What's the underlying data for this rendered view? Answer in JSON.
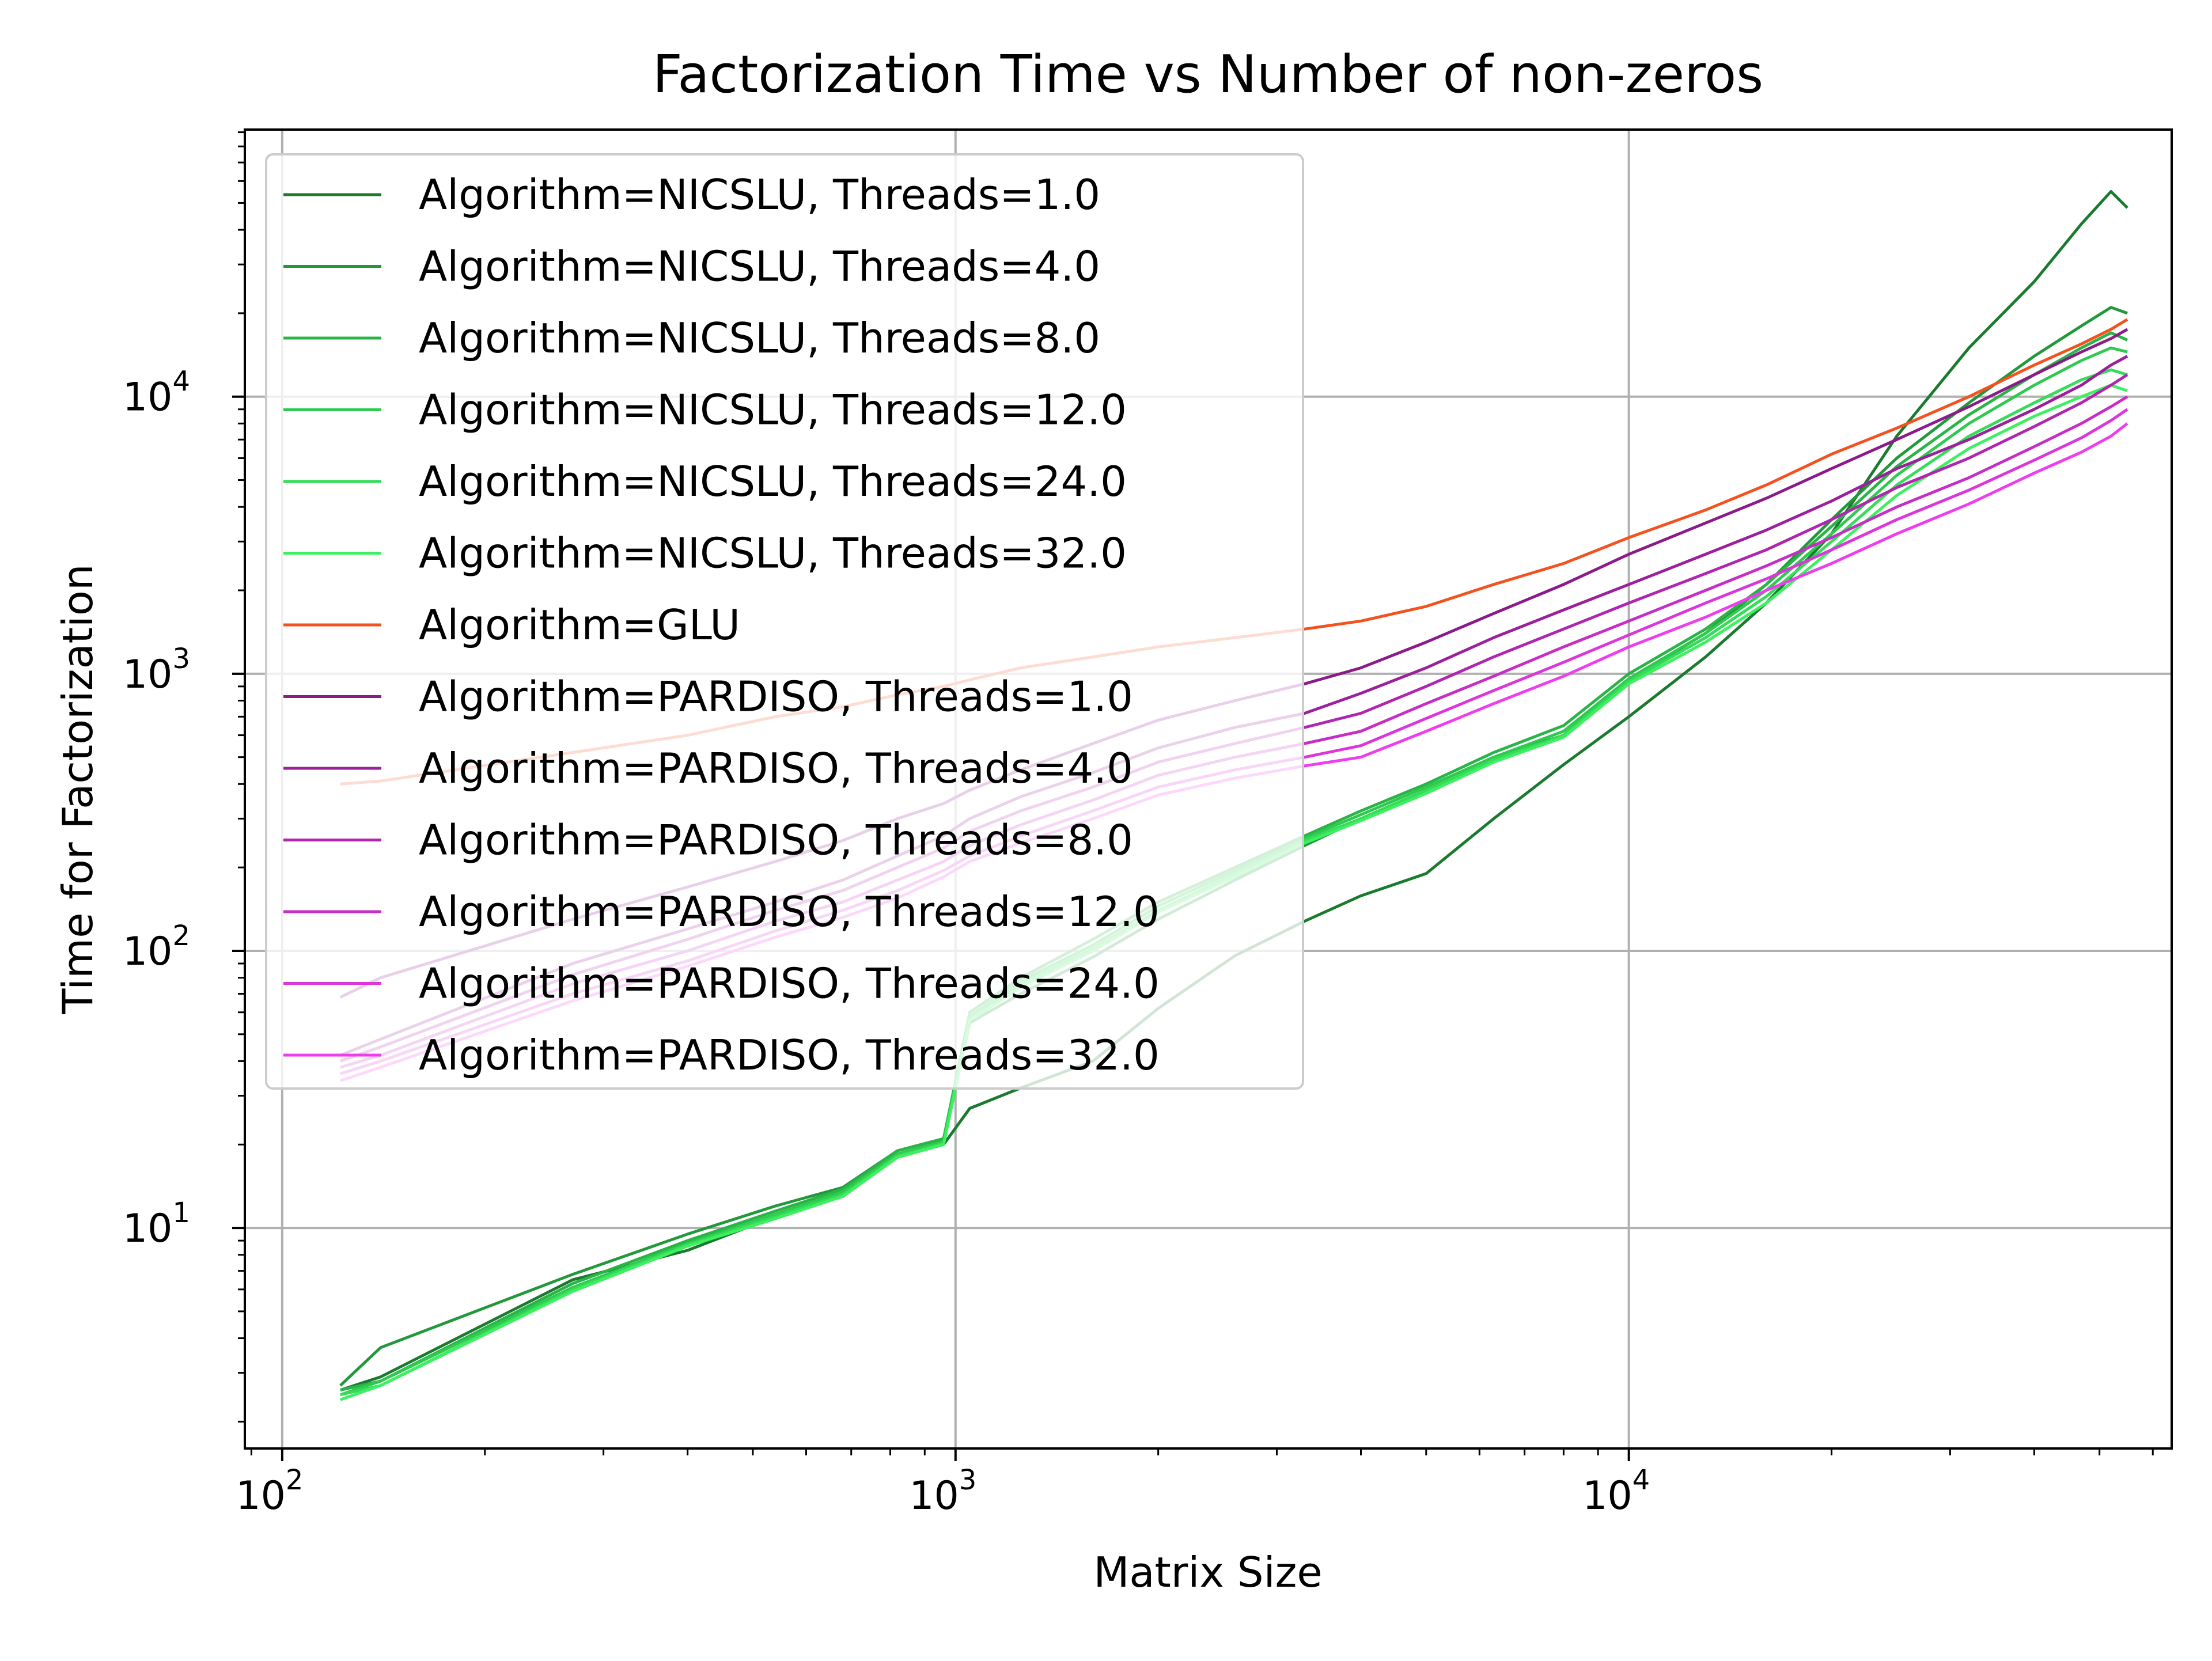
{
  "chart_data": {
    "type": "line",
    "title": "Factorization Time vs Number of non-zeros",
    "xlabel": "Matrix Size",
    "ylabel": "Time for Factorization",
    "x_scale": "log",
    "y_scale": "log",
    "xlim": [
      88,
      64000
    ],
    "ylim": [
      1.6,
      92000
    ],
    "grid": true,
    "legend_position": "top-left",
    "x_ticks": [
      {
        "base": "10",
        "exp": "2",
        "value": 100
      },
      {
        "base": "10",
        "exp": "3",
        "value": 1000
      },
      {
        "base": "10",
        "exp": "4",
        "value": 10000
      }
    ],
    "y_ticks": [
      {
        "base": "10",
        "exp": "1",
        "value": 10
      },
      {
        "base": "10",
        "exp": "2",
        "value": 100
      },
      {
        "base": "10",
        "exp": "3",
        "value": 1000
      },
      {
        "base": "10",
        "exp": "4",
        "value": 10000
      }
    ],
    "series": [
      {
        "name": "Algorithm=NICSLU, Threads=1.0",
        "color": "#1a7a2e",
        "x": [
          122,
          140,
          270,
          400,
          540,
          680,
          820,
          960,
          1050,
          1250,
          1600,
          2000,
          2600,
          3300,
          4000,
          5000,
          6300,
          8000,
          10000,
          13000,
          16000,
          20000,
          25000,
          32000,
          40000,
          47000,
          52000,
          55000
        ],
        "y": [
          2.6,
          2.9,
          6.5,
          8.3,
          11,
          13,
          18,
          20,
          27,
          32,
          40,
          62,
          96,
          128,
          158,
          190,
          300,
          470,
          700,
          1150,
          1800,
          3200,
          7200,
          15000,
          26000,
          42000,
          55000,
          48000
        ]
      },
      {
        "name": "Algorithm=NICSLU, Threads=4.0",
        "color": "#21993a",
        "x": [
          122,
          140,
          270,
          400,
          540,
          680,
          820,
          960,
          1050,
          1250,
          1600,
          2000,
          2600,
          3300,
          4000,
          5000,
          6300,
          8000,
          10000,
          13000,
          16000,
          20000,
          25000,
          32000,
          40000,
          47000,
          52000,
          55000
        ],
        "y": [
          2.7,
          3.7,
          6.8,
          9.5,
          12,
          14,
          19,
          21,
          55,
          70,
          95,
          130,
          180,
          240,
          300,
          380,
          500,
          600,
          950,
          1400,
          2100,
          3600,
          6000,
          9500,
          14000,
          18000,
          21000,
          20000
        ]
      },
      {
        "name": "Algorithm=NICSLU, Threads=8.0",
        "color": "#28b545",
        "x": [
          122,
          140,
          270,
          400,
          540,
          680,
          820,
          960,
          1050,
          1250,
          1600,
          2000,
          2600,
          3300,
          4000,
          5000,
          6300,
          8000,
          10000,
          13000,
          16000,
          20000,
          25000,
          32000,
          40000,
          47000,
          52000,
          55000
        ],
        "y": [
          2.6,
          2.8,
          6.3,
          9.0,
          11.5,
          13.8,
          19,
          21,
          60,
          80,
          110,
          150,
          200,
          260,
          320,
          400,
          520,
          650,
          1000,
          1450,
          2100,
          3400,
          5600,
          8600,
          12000,
          15000,
          17000,
          16000
        ]
      },
      {
        "name": "Algorithm=NICSLU, Threads=12.0",
        "color": "#2ec94f",
        "x": [
          122,
          140,
          270,
          400,
          540,
          680,
          820,
          960,
          1050,
          1250,
          1600,
          2000,
          2600,
          3300,
          4000,
          5000,
          6300,
          8000,
          10000,
          13000,
          16000,
          20000,
          25000,
          32000,
          40000,
          47000,
          52000,
          55000
        ],
        "y": [
          2.5,
          2.8,
          6.1,
          8.8,
          11.2,
          13.5,
          18.5,
          20.5,
          58,
          78,
          105,
          145,
          195,
          255,
          310,
          390,
          500,
          620,
          960,
          1400,
          2000,
          3200,
          5200,
          8000,
          11000,
          13500,
          15000,
          14500
        ]
      },
      {
        "name": "Algorithm=NICSLU, Threads=24.0",
        "color": "#34dc58",
        "x": [
          122,
          140,
          270,
          400,
          540,
          680,
          820,
          960,
          1050,
          1250,
          1600,
          2000,
          2600,
          3300,
          4000,
          5000,
          6300,
          8000,
          10000,
          13000,
          16000,
          20000,
          25000,
          32000,
          40000,
          47000,
          52000,
          55000
        ],
        "y": [
          2.5,
          2.7,
          6.0,
          8.7,
          11.0,
          13.2,
          18.2,
          20.2,
          57,
          76,
          102,
          140,
          190,
          250,
          300,
          380,
          490,
          600,
          940,
          1350,
          1900,
          3000,
          4800,
          7200,
          9500,
          11500,
          12500,
          12000
        ]
      },
      {
        "name": "Algorithm=NICSLU, Threads=32.0",
        "color": "#3df060",
        "x": [
          122,
          140,
          270,
          400,
          540,
          680,
          820,
          960,
          1050,
          1250,
          1600,
          2000,
          2600,
          3300,
          4000,
          5000,
          6300,
          8000,
          10000,
          13000,
          16000,
          20000,
          25000,
          32000,
          40000,
          47000,
          52000,
          55000
        ],
        "y": [
          2.4,
          2.7,
          5.9,
          8.6,
          10.8,
          13.0,
          18.0,
          20.0,
          56,
          74,
          100,
          138,
          185,
          245,
          295,
          370,
          480,
          590,
          920,
          1300,
          1800,
          2800,
          4400,
          6500,
          8500,
          10000,
          11000,
          10500
        ]
      },
      {
        "name": "Algorithm=GLU",
        "color": "#f4511e",
        "x": [
          122,
          140,
          270,
          400,
          540,
          680,
          820,
          960,
          1050,
          1250,
          1600,
          2000,
          2600,
          3300,
          4000,
          5000,
          6300,
          8000,
          10000,
          13000,
          16000,
          20000,
          25000,
          32000,
          40000,
          47000,
          52000,
          55000
        ],
        "y": [
          400,
          410,
          520,
          600,
          700,
          760,
          840,
          900,
          950,
          1050,
          1150,
          1250,
          1350,
          1450,
          1550,
          1750,
          2100,
          2500,
          3100,
          3900,
          4800,
          6200,
          7700,
          10000,
          13000,
          15500,
          17500,
          19000
        ]
      },
      {
        "name": "Algorithm=PARDISO, Threads=1.0",
        "color": "#8b1a8b",
        "x": [
          122,
          140,
          270,
          400,
          540,
          680,
          820,
          960,
          1050,
          1250,
          1600,
          2000,
          2600,
          3300,
          4000,
          5000,
          6300,
          8000,
          10000,
          13000,
          16000,
          20000,
          25000,
          32000,
          40000,
          47000,
          52000,
          55000
        ],
        "y": [
          68,
          80,
          130,
          170,
          210,
          250,
          300,
          340,
          380,
          450,
          560,
          680,
          800,
          920,
          1050,
          1300,
          1650,
          2100,
          2700,
          3500,
          4300,
          5500,
          7000,
          9200,
          12000,
          14500,
          16200,
          17500
        ]
      },
      {
        "name": "Algorithm=PARDISO, Threads=4.0",
        "color": "#9c1f9c",
        "x": [
          122,
          140,
          270,
          400,
          540,
          680,
          820,
          960,
          1050,
          1250,
          1600,
          2000,
          2600,
          3300,
          4000,
          5000,
          6300,
          8000,
          10000,
          13000,
          16000,
          20000,
          25000,
          32000,
          40000,
          47000,
          52000,
          55000
        ],
        "y": [
          42,
          48,
          90,
          120,
          150,
          180,
          220,
          260,
          300,
          360,
          440,
          540,
          640,
          720,
          850,
          1050,
          1350,
          1700,
          2100,
          2700,
          3300,
          4200,
          5500,
          7000,
          9000,
          11000,
          13000,
          14000
        ]
      },
      {
        "name": "Algorithm=PARDISO, Threads=8.0",
        "color": "#b026b0",
        "x": [
          122,
          140,
          270,
          400,
          540,
          680,
          820,
          960,
          1050,
          1250,
          1600,
          2000,
          2600,
          3300,
          4000,
          5000,
          6300,
          8000,
          10000,
          13000,
          16000,
          20000,
          25000,
          32000,
          40000,
          47000,
          52000,
          55000
        ],
        "y": [
          40,
          45,
          82,
          110,
          140,
          165,
          200,
          235,
          270,
          320,
          390,
          480,
          560,
          640,
          720,
          900,
          1150,
          1450,
          1800,
          2300,
          2800,
          3600,
          4700,
          6000,
          7800,
          9500,
          11000,
          12000
        ]
      },
      {
        "name": "Algorithm=PARDISO, Threads=12.0",
        "color": "#c62ec6",
        "x": [
          122,
          140,
          270,
          400,
          540,
          680,
          820,
          960,
          1050,
          1250,
          1600,
          2000,
          2600,
          3300,
          4000,
          5000,
          6300,
          8000,
          10000,
          13000,
          16000,
          20000,
          25000,
          32000,
          40000,
          47000,
          52000,
          55000
        ],
        "y": [
          38,
          42,
          76,
          100,
          128,
          150,
          180,
          210,
          240,
          285,
          350,
          430,
          500,
          560,
          620,
          780,
          980,
          1250,
          1550,
          2000,
          2450,
          3100,
          4000,
          5100,
          6600,
          8000,
          9200,
          10000
        ]
      },
      {
        "name": "Algorithm=PARDISO, Threads=24.0",
        "color": "#dc35dc",
        "x": [
          122,
          140,
          270,
          400,
          540,
          680,
          820,
          960,
          1050,
          1250,
          1600,
          2000,
          2600,
          3300,
          4000,
          5000,
          6300,
          8000,
          10000,
          13000,
          16000,
          20000,
          25000,
          32000,
          40000,
          47000,
          52000,
          55000
        ],
        "y": [
          36,
          40,
          70,
          92,
          118,
          140,
          165,
          195,
          220,
          260,
          320,
          390,
          450,
          500,
          550,
          690,
          870,
          1100,
          1380,
          1800,
          2200,
          2800,
          3600,
          4600,
          5900,
          7100,
          8200,
          9000
        ]
      },
      {
        "name": "Algorithm=PARDISO, Threads=32.0",
        "color": "#f03cf0",
        "x": [
          122,
          140,
          270,
          400,
          540,
          680,
          820,
          960,
          1050,
          1250,
          1600,
          2000,
          2600,
          3300,
          4000,
          5000,
          6300,
          8000,
          10000,
          13000,
          16000,
          20000,
          25000,
          32000,
          40000,
          47000,
          52000,
          55000
        ],
        "y": [
          34,
          38,
          66,
          88,
          112,
          132,
          155,
          185,
          210,
          245,
          300,
          365,
          420,
          465,
          500,
          620,
          780,
          980,
          1250,
          1600,
          2000,
          2500,
          3200,
          4100,
          5300,
          6300,
          7200,
          8000
        ]
      }
    ]
  }
}
